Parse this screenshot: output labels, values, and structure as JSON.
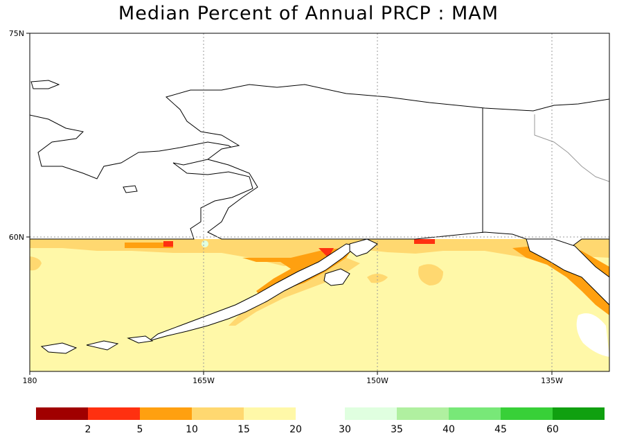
{
  "title": "Median Percent of Annual PRCP   :   MAM",
  "map": {
    "lat_labels": [
      "75N",
      "60N"
    ],
    "lon_labels": [
      "180",
      "165W",
      "150W",
      "135W"
    ],
    "land_color": "#ffffff",
    "coast_color": "#000000",
    "grid_color": "#999999"
  },
  "colorbar": {
    "ticks": [
      "2",
      "5",
      "10",
      "15",
      "20",
      "30",
      "35",
      "40",
      "45",
      "60"
    ],
    "colors": [
      "#a00000",
      "#ff3010",
      "#ffa010",
      "#ffd870",
      "#fff8a8",
      "#e0ffe0",
      "#b0f0a0",
      "#78e878",
      "#38d038",
      "#10a010"
    ]
  }
}
